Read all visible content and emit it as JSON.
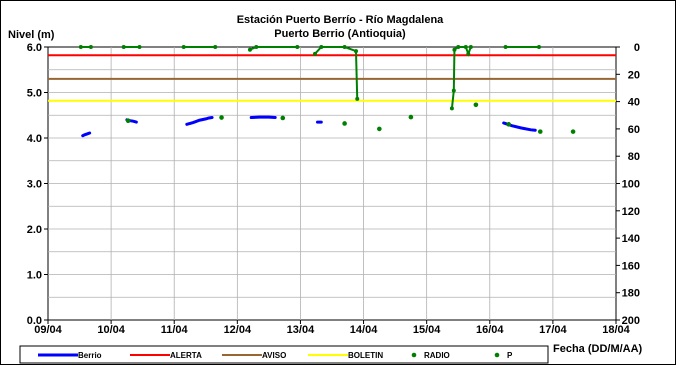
{
  "chart_data": {
    "type": "line",
    "title": "Estación Puerto Berrío - Río Magdalena",
    "subtitle": "Puerto Berrio (Antioquia)",
    "ylabel": "Nivel (m)",
    "xlabel": "Fecha (DD/M/AA)",
    "y2label": "",
    "x_ticks": [
      "09/04",
      "10/04",
      "11/04",
      "12/04",
      "13/04",
      "14/04",
      "15/04",
      "16/04",
      "17/04",
      "18/04"
    ],
    "y_ticks": [
      "0.0",
      "1.0",
      "2.0",
      "3.0",
      "4.0",
      "5.0",
      "6.0"
    ],
    "y2_ticks": [
      "0",
      "20",
      "40",
      "60",
      "80",
      "100",
      "120",
      "140",
      "160",
      "180",
      "200"
    ],
    "xlim": [
      0,
      9
    ],
    "ylim": [
      0,
      6
    ],
    "y2lim": [
      0,
      200
    ],
    "grid": true,
    "legend_position": "bottom",
    "thresholds": [
      {
        "name": "ALERTA",
        "value": 5.82,
        "color": "#ff0000"
      },
      {
        "name": "AVISO",
        "value": 5.3,
        "color": "#996633"
      },
      {
        "name": "BOLETIN",
        "value": 4.82,
        "color": "#ffff00"
      }
    ],
    "series": [
      {
        "name": "Berrio",
        "color": "#0000ff",
        "segments": [
          [
            [
              0.55,
              4.05
            ],
            [
              0.58,
              4.07
            ],
            [
              0.62,
              4.09
            ],
            [
              0.66,
              4.11
            ]
          ],
          [
            [
              1.25,
              4.4
            ],
            [
              1.3,
              4.38
            ],
            [
              1.35,
              4.37
            ],
            [
              1.4,
              4.35
            ]
          ],
          [
            [
              2.2,
              4.3
            ],
            [
              2.3,
              4.34
            ],
            [
              2.4,
              4.39
            ],
            [
              2.5,
              4.42
            ],
            [
              2.55,
              4.44
            ],
            [
              2.6,
              4.45
            ]
          ],
          [
            [
              3.22,
              4.45
            ],
            [
              3.35,
              4.46
            ],
            [
              3.5,
              4.46
            ],
            [
              3.6,
              4.45
            ]
          ],
          [
            [
              4.27,
              4.35
            ],
            [
              4.33,
              4.35
            ]
          ],
          [
            [
              7.22,
              4.33
            ],
            [
              7.35,
              4.27
            ],
            [
              7.5,
              4.22
            ],
            [
              7.65,
              4.18
            ],
            [
              7.72,
              4.17
            ]
          ]
        ]
      },
      {
        "name": "RADIO",
        "color": "#008000",
        "points": [
          [
            1.27,
            4.38
          ],
          [
            2.75,
            4.45
          ],
          [
            3.72,
            4.44
          ],
          [
            4.7,
            4.32
          ],
          [
            5.25,
            4.2
          ],
          [
            5.75,
            4.46
          ],
          [
            6.78,
            4.73
          ],
          [
            7.3,
            4.3
          ],
          [
            7.8,
            4.14
          ],
          [
            8.32,
            4.14
          ]
        ]
      },
      {
        "name": "P",
        "color": "#008000",
        "note": "",
        "axis": "secondary",
        "segments": [
          [
            [
              0.52,
              0
            ],
            [
              0.68,
              0
            ]
          ],
          [
            [
              1.2,
              0
            ],
            [
              1.45,
              0
            ]
          ],
          [
            [
              2.15,
              0
            ],
            [
              2.65,
              0
            ]
          ],
          [
            [
              3.2,
              2
            ],
            [
              3.3,
              0
            ],
            [
              3.95,
              0
            ]
          ],
          [
            [
              4.23,
              5
            ],
            [
              4.33,
              0
            ],
            [
              4.7,
              0
            ],
            [
              4.88,
              3
            ],
            [
              4.9,
              38
            ]
          ],
          [
            [
              6.4,
              45
            ],
            [
              6.43,
              32
            ],
            [
              6.44,
              2
            ],
            [
              6.5,
              0
            ],
            [
              6.62,
              0
            ],
            [
              6.66,
              5
            ],
            [
              6.7,
              0
            ]
          ],
          [
            [
              7.25,
              0
            ],
            [
              7.78,
              0
            ]
          ]
        ]
      }
    ]
  }
}
